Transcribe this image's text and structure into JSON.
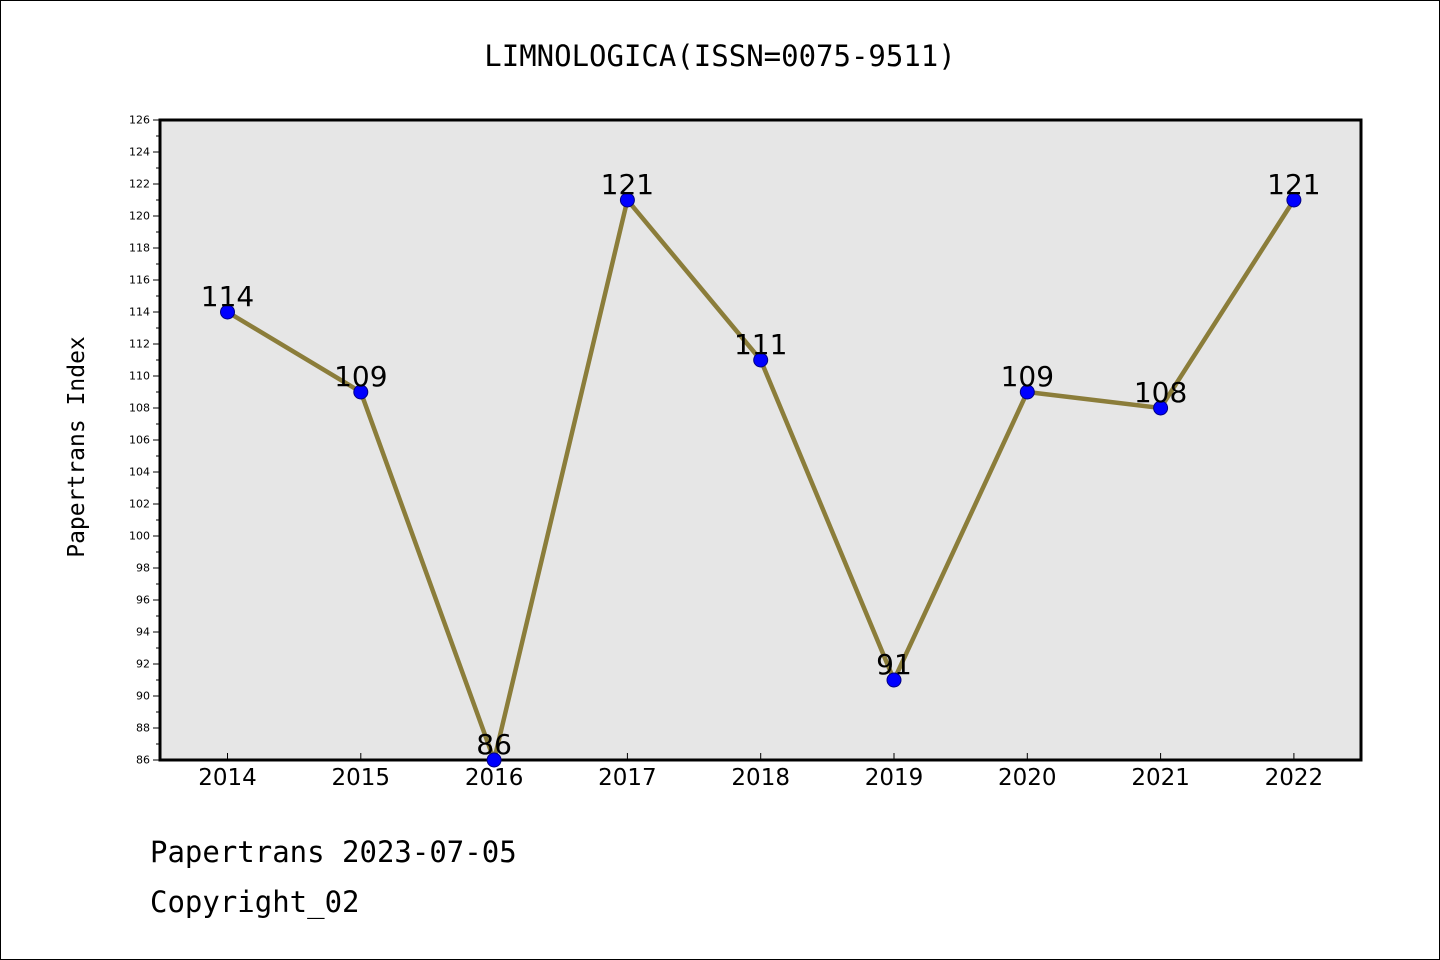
{
  "chart_data": {
    "type": "line",
    "title": "LIMNOLOGICA(ISSN=0075-9511)",
    "ylabel": "Papertrans Index",
    "xlabel": "",
    "categories": [
      "2014",
      "2015",
      "2016",
      "2017",
      "2018",
      "2019",
      "2020",
      "2021",
      "2022"
    ],
    "series": [
      {
        "values": [
          114,
          109,
          86,
          121,
          111,
          91,
          109,
          108,
          121
        ]
      }
    ],
    "data_labels": [
      "114",
      "109",
      "86",
      "121",
      "111",
      "91",
      "109",
      "108",
      "121"
    ],
    "ylim": [
      86,
      126
    ],
    "y_ticks": [
      "86",
      "88",
      "90",
      "92",
      "94",
      "96",
      "98",
      "100",
      "102",
      "104",
      "106",
      "108",
      "110",
      "112",
      "114",
      "116",
      "118",
      "120",
      "122",
      "124",
      "126"
    ],
    "grid": false,
    "legend": "none",
    "colors": {
      "line": "#8b7d3a",
      "marker_fill": "#0000ff",
      "marker_edge": "#000080",
      "plot_background": "#e6e6e6"
    }
  },
  "footer": {
    "line1": "Papertrans 2023-07-05",
    "line2": "Copyright_02"
  }
}
